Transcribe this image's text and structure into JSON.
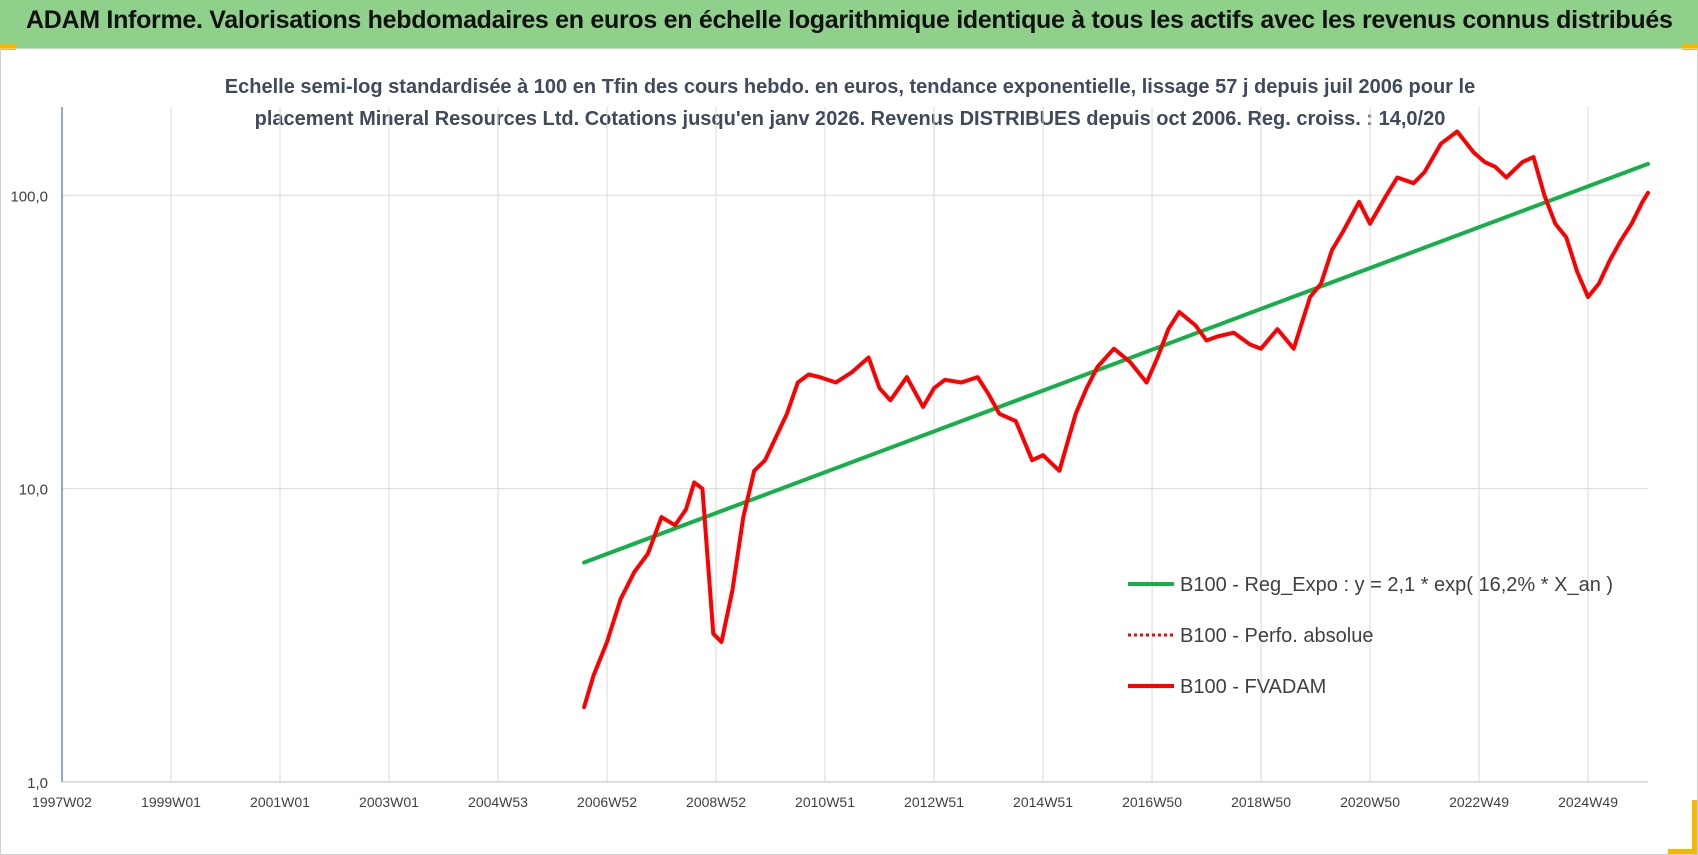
{
  "header": {
    "title": "ADAM Informe. Valorisations hebdomadaires en euros en échelle logarithmique identique à tous les actifs avec les revenus connus distribués"
  },
  "colors": {
    "banner": "#8fd18a",
    "trend": "#16b04a",
    "series": "#ff0000",
    "grid": "#d9d9d9",
    "axis": "#4472c4",
    "corner": "#f5b800"
  },
  "chart_data": {
    "type": "line",
    "title_line1": "Echelle semi-log standardisée à 100 en Tfin des cours hebdo. en euros, tendance exponentielle, lissage 57 j depuis juil 2006 pour le",
    "title_line2": "placement Mineral Resources Ltd. Cotations jusqu'en janv 2026. Revenus DISTRIBUES depuis oct 2006. Reg. croiss. : 14,0/20",
    "y_scale": "log",
    "ylim": [
      1,
      200
    ],
    "y_ticks": [
      1,
      10,
      100
    ],
    "y_tick_labels": [
      "1,0",
      "10,0",
      "100,0"
    ],
    "xlim": [
      1997.0,
      2026.1
    ],
    "x_ticks": [
      1997.0,
      1999.0,
      2001.0,
      2003.0,
      2005.0,
      2007.0,
      2009.0,
      2011.0,
      2013.0,
      2015.0,
      2017.0,
      2019.0,
      2021.0,
      2023.0,
      2025.0
    ],
    "x_tick_labels": [
      "1997W02",
      "1999W01",
      "2001W01",
      "2003W01",
      "2004W53",
      "2006W52",
      "2008W52",
      "2010W51",
      "2012W51",
      "2014W51",
      "2016W50",
      "2018W50",
      "2020W50",
      "2022W49",
      "2024W49"
    ],
    "legend_position": "center-right",
    "series": [
      {
        "name": "B100 - Reg_Expo : y = 2,1 * exp( 16,2% *  X_an )",
        "style": "solid",
        "color": "#16b04a",
        "x": [
          2006.58,
          2026.1
        ],
        "y": [
          5.6,
          128
        ]
      },
      {
        "name": "B100 - Perfo. absolue",
        "style": "dotted",
        "color": "#ff0000",
        "x": [],
        "y": []
      },
      {
        "name": "B100 - FVADAM",
        "style": "solid",
        "color": "#ff0000",
        "x": [
          2006.58,
          2006.75,
          2007.0,
          2007.25,
          2007.5,
          2007.75,
          2008.0,
          2008.25,
          2008.45,
          2008.6,
          2008.75,
          2008.95,
          2009.1,
          2009.3,
          2009.5,
          2009.7,
          2009.9,
          2010.1,
          2010.3,
          2010.5,
          2010.7,
          2010.9,
          2011.2,
          2011.5,
          2011.8,
          2012.0,
          2012.2,
          2012.5,
          2012.8,
          2013.0,
          2013.2,
          2013.5,
          2013.8,
          2014.0,
          2014.2,
          2014.5,
          2014.8,
          2015.0,
          2015.3,
          2015.6,
          2015.8,
          2016.0,
          2016.3,
          2016.6,
          2016.9,
          2017.1,
          2017.3,
          2017.5,
          2017.8,
          2018.0,
          2018.2,
          2018.5,
          2018.8,
          2019.0,
          2019.3,
          2019.6,
          2019.9,
          2020.1,
          2020.3,
          2020.5,
          2020.8,
          2021.0,
          2021.3,
          2021.5,
          2021.8,
          2022.0,
          2022.3,
          2022.6,
          2022.9,
          2023.1,
          2023.3,
          2023.5,
          2023.8,
          2024.0,
          2024.2,
          2024.4,
          2024.6,
          2024.8,
          2025.0,
          2025.2,
          2025.4,
          2025.6,
          2025.8,
          2026.0,
          2026.1
        ],
        "y": [
          1.8,
          2.3,
          3.0,
          4.2,
          5.2,
          6.0,
          8.0,
          7.5,
          8.5,
          10.5,
          10.0,
          3.2,
          3.0,
          4.5,
          8.0,
          11.5,
          12.5,
          15.0,
          18.0,
          23.0,
          24.5,
          24.0,
          23.0,
          25.0,
          28.0,
          22.0,
          20.0,
          24.0,
          19.0,
          22.0,
          23.5,
          23.0,
          24.0,
          21.0,
          18.0,
          17.0,
          12.5,
          13.0,
          11.5,
          18.0,
          22.0,
          26.0,
          30.0,
          27.0,
          23.0,
          28.0,
          35.0,
          40.0,
          36.0,
          32.0,
          33.0,
          34.0,
          31.0,
          30.0,
          35.0,
          30.0,
          45.0,
          50.0,
          65.0,
          75.0,
          95.0,
          80.0,
          100.0,
          115.0,
          110.0,
          120.0,
          150.0,
          165.0,
          140.0,
          130.0,
          125.0,
          115.0,
          130.0,
          135.0,
          100.0,
          80.0,
          72.0,
          55.0,
          45.0,
          50.0,
          60.0,
          70.0,
          80.0,
          95.0,
          102.0
        ]
      }
    ]
  }
}
